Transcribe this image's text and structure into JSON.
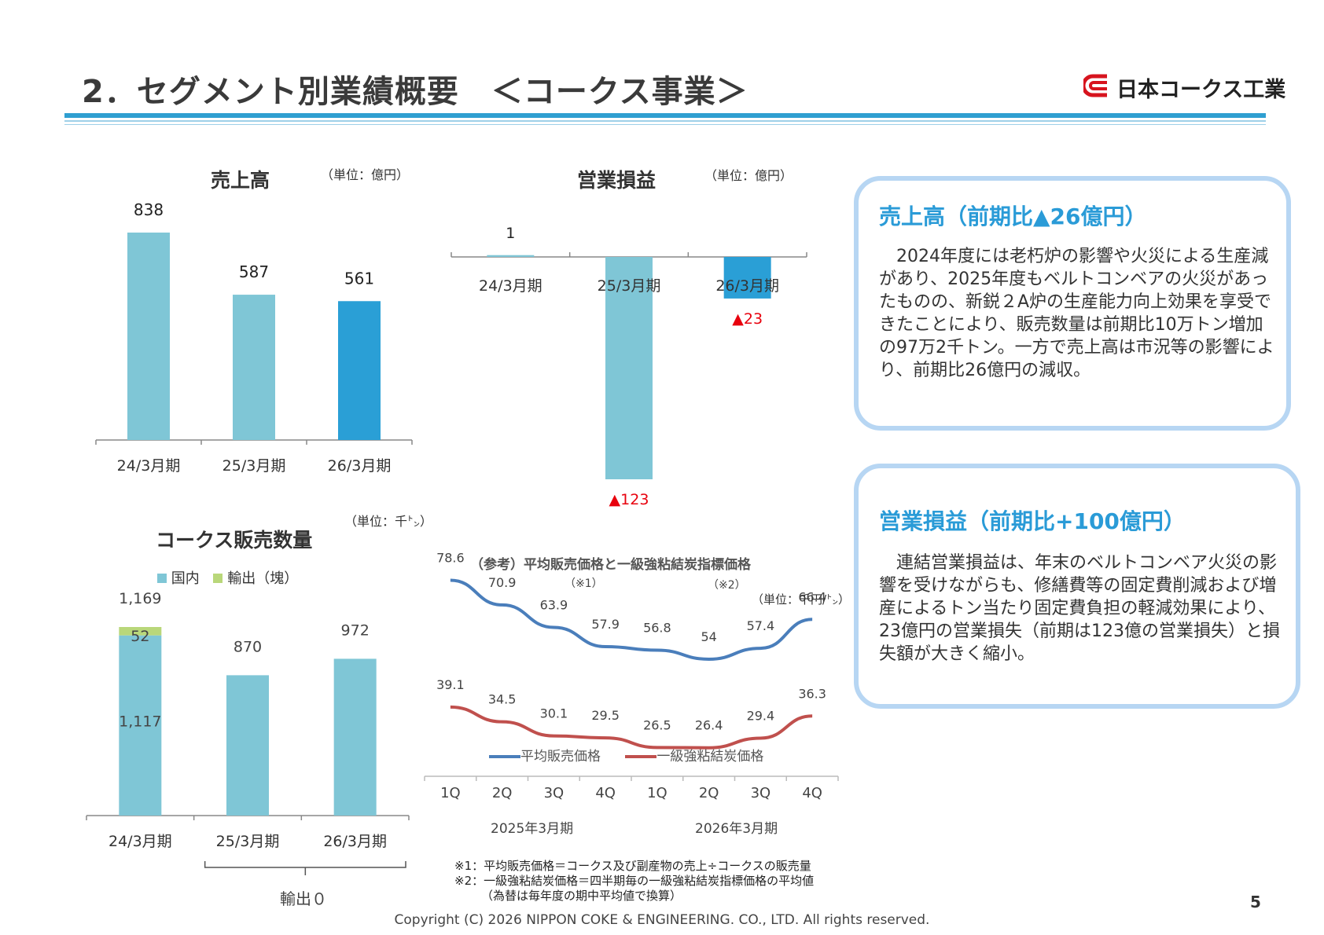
{
  "header": {
    "title": "2．セグメント別業績概要　＜コークス事業＞",
    "logo_text": "日本コークス工業"
  },
  "colors": {
    "accent": "#2f9fd1",
    "bar_light": "#7fc6d6",
    "bar_highlight": "#2a9fd6",
    "export_green": "#b9d77a",
    "line_avg_price": "#4a7ebb",
    "line_coal_price": "#c0504d",
    "negative_red": "#e8000d",
    "box_border": "#b7d6f3",
    "box_title": "#2a9bd7"
  },
  "sales_chart": {
    "title": "売上高",
    "unit": "（単位：億円）"
  },
  "profit_chart": {
    "title": "営業損益",
    "unit": "（単位：億円）"
  },
  "volume_chart": {
    "title": "コークス販売数量",
    "unit": "（単位：千㌧）",
    "legend_domestic": "国内",
    "legend_export": "輸出（塊）",
    "bracket_label": "輸出０"
  },
  "price_chart": {
    "title": "（参考）平均販売価格と一級強粘結炭指標価格",
    "note_ref1": "（※1）",
    "note_ref2": "（※2）",
    "unit": "（単位：千円/㌧）",
    "legend_avg": "平均販売価格",
    "legend_coal": "一級強粘結炭価格",
    "year1": "2025年3月期",
    "year2": "2026年3月期"
  },
  "chart_data": [
    {
      "type": "bar",
      "title": "売上高",
      "categories": [
        "24/3月期",
        "25/3月期",
        "26/3月期"
      ],
      "values": [
        838,
        587,
        561
      ],
      "labels": [
        "838",
        "587",
        "561"
      ],
      "ylim": [
        0,
        838
      ]
    },
    {
      "type": "bar",
      "title": "営業損益",
      "categories": [
        "24/3月期",
        "25/3月期",
        "26/3月期"
      ],
      "values": [
        1,
        -123,
        -23
      ],
      "labels": [
        "1",
        "▲123",
        "▲23"
      ],
      "ylim": [
        -123,
        1
      ]
    },
    {
      "type": "bar",
      "stacked": true,
      "title": "コークス販売数量",
      "categories": [
        "24/3月期",
        "25/3月期",
        "26/3月期"
      ],
      "series": [
        {
          "name": "国内",
          "values": [
            1117,
            870,
            972
          ],
          "labels": [
            "1,117",
            "",
            ""
          ]
        },
        {
          "name": "輸出（塊）",
          "values": [
            52,
            0,
            0
          ],
          "labels": [
            "52",
            "",
            ""
          ]
        }
      ],
      "total_labels": [
        "1,169",
        "870",
        "972"
      ],
      "ylim": [
        0,
        1169
      ]
    },
    {
      "type": "line",
      "title": "（参考）平均販売価格と一級強粘結炭指標価格",
      "categories": [
        "1Q",
        "2Q",
        "3Q",
        "4Q",
        "1Q",
        "2Q",
        "3Q",
        "4Q"
      ],
      "groups": [
        "2025年3月期",
        "2026年3月期"
      ],
      "series": [
        {
          "name": "平均販売価格",
          "values": [
            78.6,
            70.9,
            63.9,
            57.9,
            56.8,
            54,
            57.4,
            66.4
          ]
        },
        {
          "name": "一級強粘結炭価格",
          "values": [
            39.1,
            34.5,
            30.1,
            29.5,
            26.5,
            26.4,
            29.4,
            36.3
          ]
        }
      ],
      "legend": "bottom"
    }
  ],
  "box_sales": {
    "title": "売上高（前期比▲26億円）",
    "body": "　2024年度には老朽炉の影響や火災による生産減があり、2025年度もベルトコンベアの火災があったものの、新鋭２A炉の生産能力向上効果を享受できたことにより、販売数量は前期比10万トン増加の97万2千トン。一方で売上高は市況等の影響により、前期比26億円の減収。"
  },
  "box_profit": {
    "title": "営業損益（前期比+100億円）",
    "body": "　連結営業損益は、年末のベルトコンベア火災の影響を受けながらも、修繕費等の固定費削減および増産によるトン当たり固定費負担の軽減効果により、23億円の営業損失（前期は123億の営業損失）と損失額が大きく縮小。"
  },
  "notes": {
    "note1": "※1：平均販売価格＝コークス及び副産物の売上÷コークスの販売量",
    "note2": "※2：一級強粘結炭価格＝四半期毎の一級強粘結炭指標価格の平均値",
    "note3": "（為替は毎年度の期中平均値で換算）"
  },
  "footer": {
    "copyright": "Copyright (C) 2026 NIPPON COKE & ENGINEERING. CO., LTD. All rights reserved.",
    "page_number": "5"
  }
}
